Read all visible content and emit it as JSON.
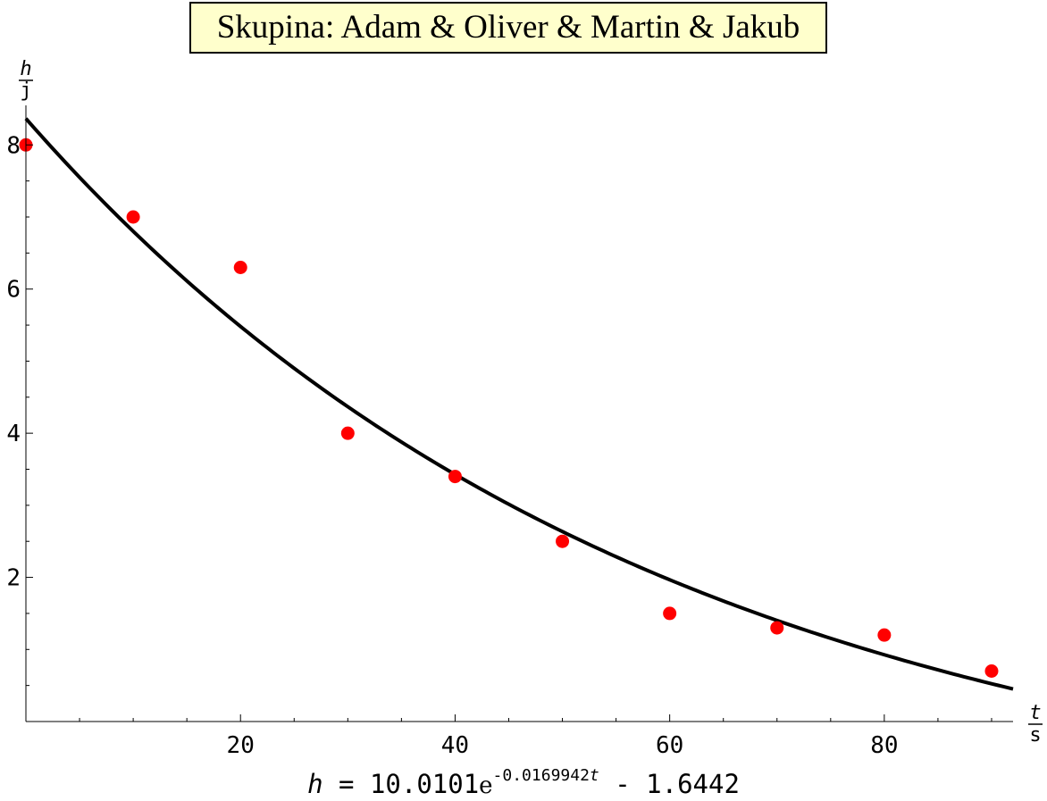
{
  "chart_data": {
    "type": "scatter",
    "title": "Skupina: Adam & Oliver & Martin & Jakub",
    "xlabel": {
      "num": "t",
      "den": "s"
    },
    "ylabel": {
      "num": "h",
      "den": "j"
    },
    "xlim": [
      0,
      92
    ],
    "ylim": [
      0,
      8.4
    ],
    "xticks": [
      20,
      40,
      60,
      80
    ],
    "yticks": [
      2,
      4,
      6,
      8
    ],
    "grid": false,
    "points": {
      "x": [
        0,
        10,
        20,
        30,
        40,
        50,
        60,
        70,
        80,
        90
      ],
      "y": [
        8.0,
        7.0,
        6.3,
        4.0,
        3.4,
        2.5,
        1.5,
        1.3,
        1.2,
        0.7
      ],
      "color": "#ff0000"
    },
    "fit": {
      "a": 10.0101,
      "k": -0.0169942,
      "c": -1.6442,
      "color": "#000000"
    },
    "formula": {
      "lhs": "h",
      "eq": "=",
      "coef": "10.0101",
      "base": "e",
      "exponent": "-0.0169942",
      "var": "t",
      "tail": "- 1.6442"
    }
  }
}
